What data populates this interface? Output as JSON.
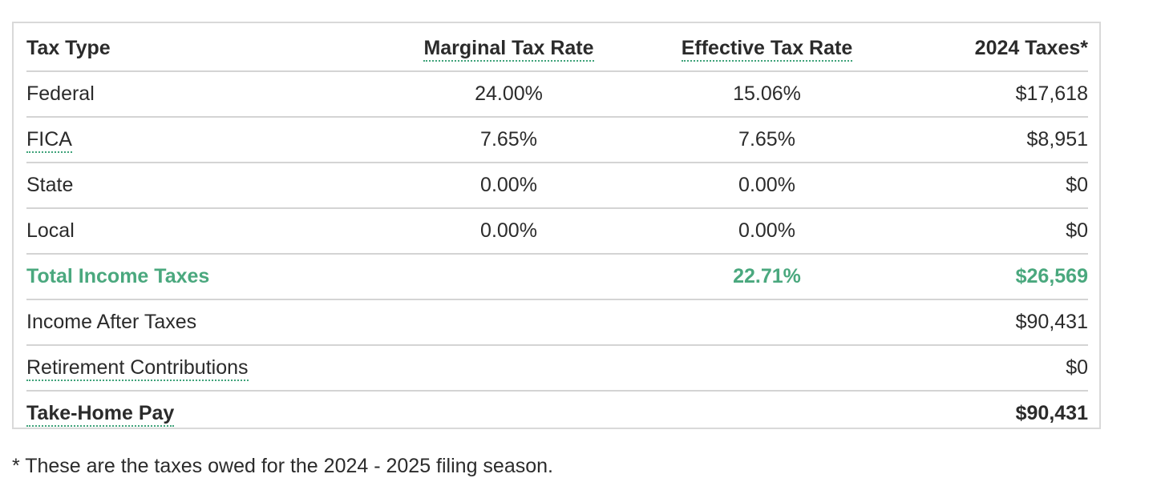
{
  "table": {
    "headers": {
      "tax_type": "Tax Type",
      "marginal": "Marginal Tax Rate",
      "effective": "Effective Tax Rate",
      "amount": "2024 Taxes*"
    },
    "rows": [
      {
        "type": "Federal",
        "marginal": "24.00%",
        "effective": "15.06%",
        "amount": "$17,618"
      },
      {
        "type": "FICA",
        "marginal": "7.65%",
        "effective": "7.65%",
        "amount": "$8,951"
      },
      {
        "type": "State",
        "marginal": "0.00%",
        "effective": "0.00%",
        "amount": "$0"
      },
      {
        "type": "Local",
        "marginal": "0.00%",
        "effective": "0.00%",
        "amount": "$0"
      }
    ],
    "total": {
      "label": "Total Income Taxes",
      "effective": "22.71%",
      "amount": "$26,569"
    },
    "after_taxes": {
      "label": "Income After Taxes",
      "amount": "$90,431"
    },
    "retirement": {
      "label": "Retirement Contributions",
      "amount": "$0"
    },
    "take_home": {
      "label": "Take-Home Pay",
      "amount": "$90,431"
    }
  },
  "footnote": "* These are the taxes owed for the 2024 - 2025 filing season.",
  "colors": {
    "accent_green": "#4aa87e",
    "border": "#d4d4d4",
    "text": "#2b2b2b"
  }
}
